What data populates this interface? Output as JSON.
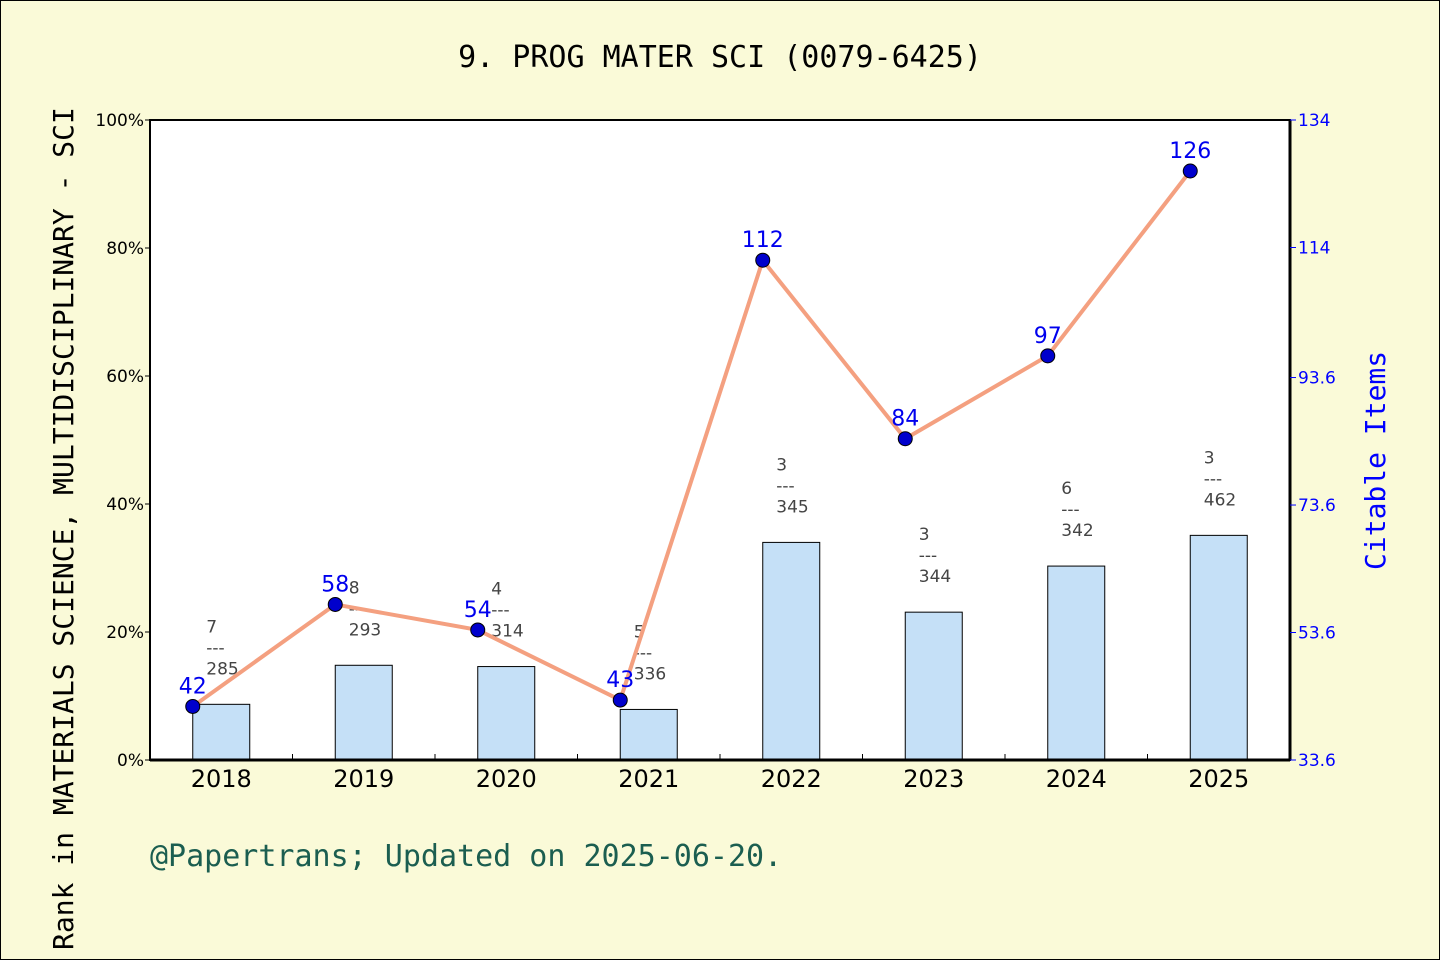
{
  "chart_data": {
    "type": "bar+line",
    "title": "9. PROG MATER SCI (0079-6425)",
    "ylabel": "Rank in MATERIALS SCIENCE, MULTIDISCIPLINARY - SCI",
    "ylabel_right": "Citable Items",
    "categories": [
      "2018",
      "2019",
      "2020",
      "2021",
      "2022",
      "2023",
      "2024",
      "2025"
    ],
    "ylim": [
      0,
      100
    ],
    "yticks": [
      "0%",
      "20%",
      "40%",
      "60%",
      "80%",
      "100%"
    ],
    "ylim_right": [
      33.6,
      134
    ],
    "yticks_right": [
      "33.6",
      "53.6",
      "73.6",
      "93.6",
      "114",
      "134"
    ],
    "bars": {
      "values_percent": [
        8.7,
        14.8,
        14.6,
        7.9,
        34.0,
        23.1,
        30.3,
        35.1
      ],
      "rank": [
        "7",
        "8",
        "4",
        "5",
        "3",
        "3",
        "6",
        "3"
      ],
      "total": [
        "285",
        "293",
        "314",
        "336",
        "345",
        "344",
        "342",
        "462"
      ],
      "separator": "---",
      "color": "#c5e0f7"
    },
    "line": {
      "axis": "right",
      "values": [
        42,
        58,
        54,
        43,
        112,
        84,
        97,
        126
      ],
      "labels": [
        "42",
        "58",
        "54",
        "43",
        "112",
        "84",
        "97",
        "126"
      ],
      "line_color": "#f4a080",
      "marker_color": "#0000cc"
    },
    "grid": false
  },
  "footer": "@Papertrans; Updated on 2025-06-20."
}
